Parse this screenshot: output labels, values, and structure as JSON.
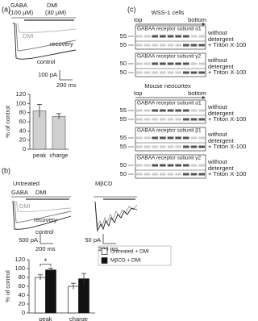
{
  "figure": {
    "panel_a": {
      "label": "(a)",
      "gaba": "GABA",
      "gaba_conc": "(100 μM)",
      "dmi": "DMI",
      "dmi_conc": "(30 μM)",
      "trace_labels": [
        "DMI",
        "recovery",
        "control"
      ],
      "scale_y": "100 pA",
      "scale_x": "200 ms"
    },
    "panel_b": {
      "label": "(b)",
      "conditions": [
        "Untreated",
        "MβCD"
      ],
      "gaba": "GABA",
      "dmi": "DMI",
      "trace_labels": [
        "DMI",
        "recovery",
        "control"
      ],
      "scale_bars": [
        {
          "y": "500 pA",
          "x": "200 ms"
        },
        {
          "y": "50 pA",
          "x": "200 ms"
        }
      ]
    },
    "panel_c": {
      "label": "(c)",
      "sections": [
        {
          "title": "WSS-1  cells",
          "top": "top",
          "bottom": "bottom",
          "blots": [
            {
              "name": "GABAA receptor subunit α1",
              "rows": [
                {
                  "marker": "55",
                  "condition": [
                    "without",
                    "detergent"
                  ]
                },
                {
                  "marker": "55",
                  "condition": [
                    "+ Triton X-100"
                  ]
                }
              ]
            },
            {
              "name": "GABAA receptor subunit γ2",
              "rows": [
                {
                  "marker": "50",
                  "condition": [
                    "without",
                    "detergent"
                  ]
                },
                {
                  "marker": "50",
                  "condition": [
                    "+ Triton X-100"
                  ]
                }
              ]
            }
          ]
        },
        {
          "title": "Mouse neocortex",
          "top": "top",
          "bottom": "bottom",
          "blots": [
            {
              "name": "GABAA receptor subunit α1",
              "rows": [
                {
                  "marker": "55",
                  "condition": [
                    "without",
                    "detergent"
                  ]
                },
                {
                  "marker": "55",
                  "condition": [
                    "+ Triton X-100"
                  ]
                }
              ]
            },
            {
              "name": "GABAA receptor subunit β1",
              "rows": [
                {
                  "marker": "55",
                  "condition": [
                    "without",
                    "detergent"
                  ]
                },
                {
                  "marker": "55",
                  "condition": [
                    "+ Triton X-100"
                  ]
                }
              ]
            },
            {
              "name": "GABAA receptor subunit γ2",
              "rows": [
                {
                  "marker": "50",
                  "condition": [
                    "without",
                    "detergent"
                  ]
                },
                {
                  "marker": "50",
                  "condition": [
                    "+ Triton X-100"
                  ]
                }
              ]
            }
          ]
        }
      ]
    }
  },
  "chart_data": [
    {
      "type": "bar",
      "y_label": "% of control",
      "categories": [
        "peak",
        "charge"
      ],
      "values": [
        84,
        72
      ],
      "errors": [
        14,
        6
      ],
      "color": "#d0d0d0",
      "ylim": [
        0,
        120
      ],
      "yticks": [
        0,
        20,
        40,
        60,
        80,
        100,
        120
      ]
    },
    {
      "type": "grouped-bar",
      "y_label": "% of control",
      "categories": [
        "peak",
        "charge"
      ],
      "annotation": "*",
      "series": [
        {
          "name": "Untreated + DMI",
          "color": "#ffffff",
          "values": [
            80,
            60
          ],
          "errors": [
            6,
            7
          ]
        },
        {
          "name": "MβCD + DMI",
          "color": "#111111",
          "values": [
            97,
            77
          ],
          "errors": [
            4,
            12
          ]
        }
      ],
      "ylim": [
        0,
        120
      ],
      "yticks": [
        0,
        20,
        40,
        60,
        80,
        100,
        120
      ]
    }
  ]
}
